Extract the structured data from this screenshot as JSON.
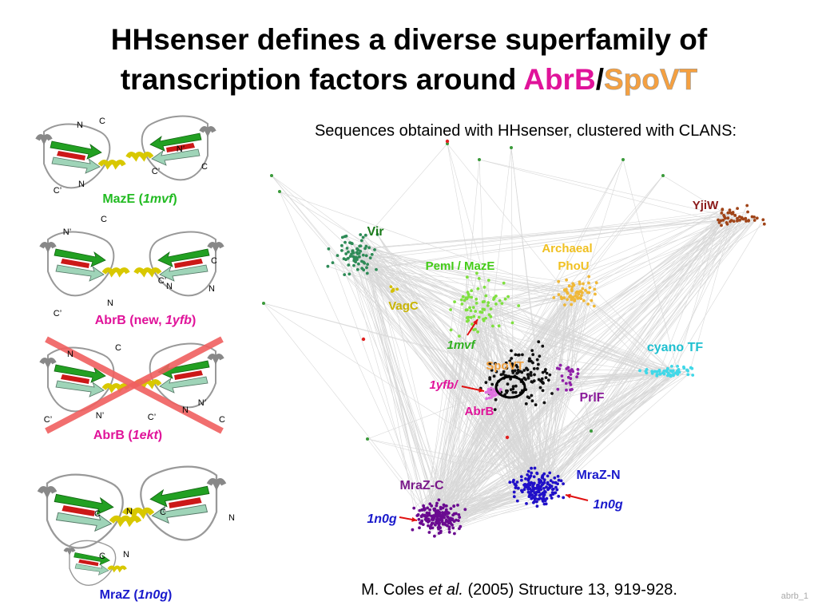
{
  "title": {
    "line1": "HHsenser defines a diverse  superfamily of",
    "line2": "transcription factors around ",
    "abrb": "AbrB",
    "slash": "/",
    "spovt": "SpoVT"
  },
  "subtitle": "Sequences obtained with HHsenser, clustered with CLANS:",
  "structures": [
    {
      "caption": {
        "prefix": "MazE (",
        "id": "1mvf",
        "suffix": ")"
      },
      "labels": [
        "N",
        "C",
        "N’",
        "C’",
        "C",
        "C’",
        "N"
      ]
    },
    {
      "caption": {
        "prefix": "AbrB (new, ",
        "id": "1yfb",
        "suffix": ")"
      },
      "labels": [
        "C",
        "N’",
        "C",
        "C’",
        "N",
        "N",
        "N",
        "C’"
      ]
    },
    {
      "caption": {
        "prefix": "AbrB (",
        "id": "1ekt",
        "suffix": ")"
      },
      "labels": [
        "C",
        "N",
        "N’",
        "N’",
        "C’",
        "C’",
        "N",
        "C"
      ]
    },
    {
      "caption": {
        "prefix": "MraZ (",
        "id": "1n0g",
        "suffix": ")"
      },
      "labels": [
        "C",
        "N",
        "C",
        "N",
        "C",
        "N"
      ]
    }
  ],
  "cluster_labels": [
    "Vir",
    "PemI / MazE",
    "Archaeal",
    "PhoU",
    "VagC",
    "YjiW",
    "cyano TF",
    "1mvf",
    "SpoVT",
    "1yfb/",
    "AbrB",
    "PrlF",
    "MraZ-C",
    "MraZ-N",
    "1n0g",
    "1n0g"
  ],
  "citation": {
    "author": "M. Coles ",
    "etal": "et al.",
    "rest": " (2005) Structure 13, 919-928."
  },
  "footer": "abrb_1"
}
